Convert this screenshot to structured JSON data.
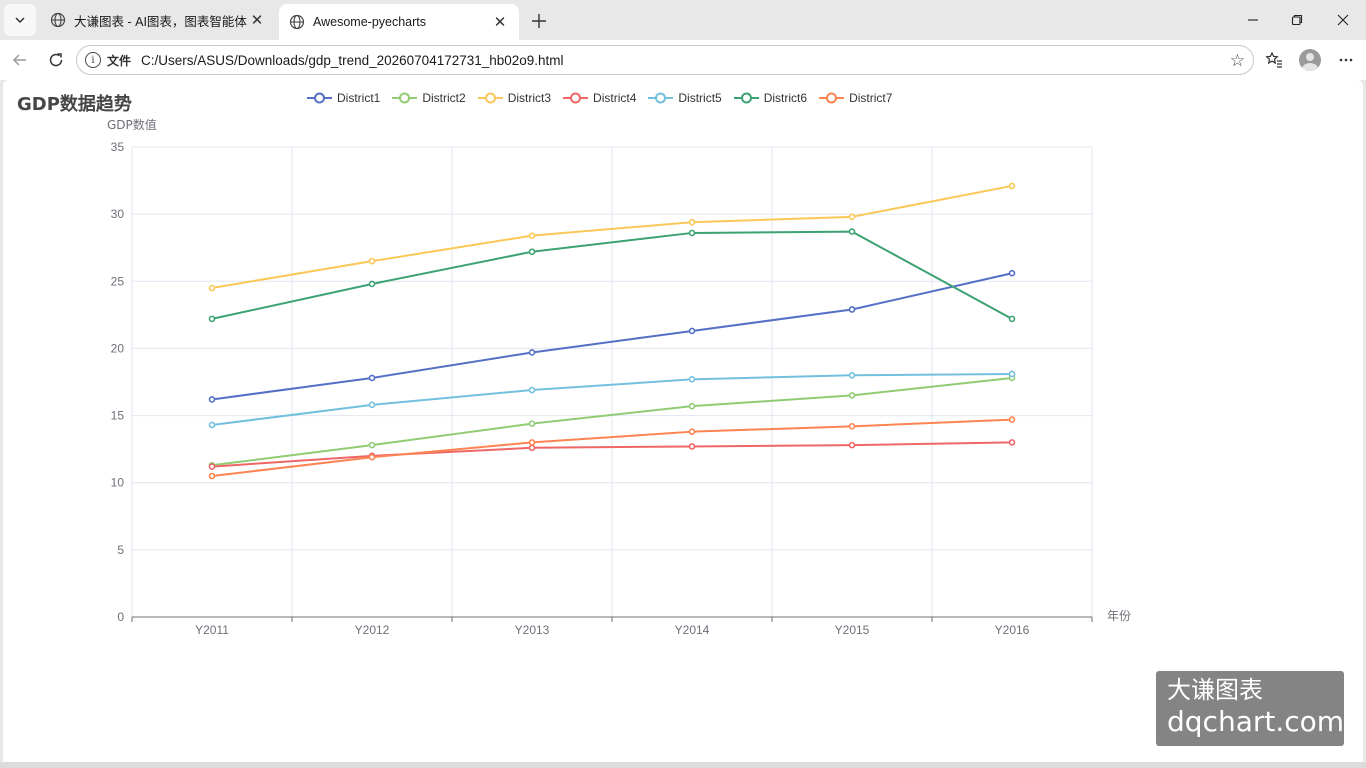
{
  "browser": {
    "tabs": [
      {
        "title": "大谦图表 - AI图表，图表智能体，",
        "active": false
      },
      {
        "title": "Awesome-pyecharts",
        "active": true
      }
    ],
    "address": {
      "security_label": "文件",
      "url": "C:/Users/ASUS/Downloads/gdp_trend_20260704172731_hb02o9.html"
    }
  },
  "page": {
    "title": "GDP数据趋势",
    "watermark": {
      "line1": "大谦图表",
      "line2": "dqchart.com"
    }
  },
  "colors": {
    "District1": "#5470c6",
    "District2": "#91cc75",
    "District3": "#fac858",
    "District4": "#ee6666",
    "District5": "#73c0de",
    "District6": "#3ba272",
    "District7": "#fc8452"
  },
  "chart_data": {
    "type": "line",
    "title": "GDP数据趋势",
    "ylabel": "GDP数值",
    "xlabel": "年份",
    "categories": [
      "Y2011",
      "Y2012",
      "Y2013",
      "Y2014",
      "Y2015",
      "Y2016"
    ],
    "ylim": [
      0,
      35
    ],
    "yticks": [
      "0",
      "5",
      "10",
      "15",
      "20",
      "25",
      "30",
      "35"
    ],
    "legend_position": "top",
    "grid": true,
    "series": [
      {
        "name": "District1",
        "values": [
          16.2,
          17.8,
          19.7,
          21.3,
          22.9,
          25.6
        ]
      },
      {
        "name": "District2",
        "values": [
          11.3,
          12.8,
          14.4,
          15.7,
          16.5,
          17.8
        ]
      },
      {
        "name": "District3",
        "values": [
          24.5,
          26.5,
          28.4,
          29.4,
          29.8,
          32.1
        ]
      },
      {
        "name": "District4",
        "values": [
          11.2,
          12.0,
          12.6,
          12.7,
          12.8,
          13.0
        ]
      },
      {
        "name": "District5",
        "values": [
          14.3,
          15.8,
          16.9,
          17.7,
          18.0,
          18.1
        ]
      },
      {
        "name": "District6",
        "values": [
          22.2,
          24.8,
          27.2,
          28.6,
          28.7,
          22.2
        ]
      },
      {
        "name": "District7",
        "values": [
          10.5,
          11.9,
          13.0,
          13.8,
          14.2,
          14.7
        ]
      }
    ]
  }
}
